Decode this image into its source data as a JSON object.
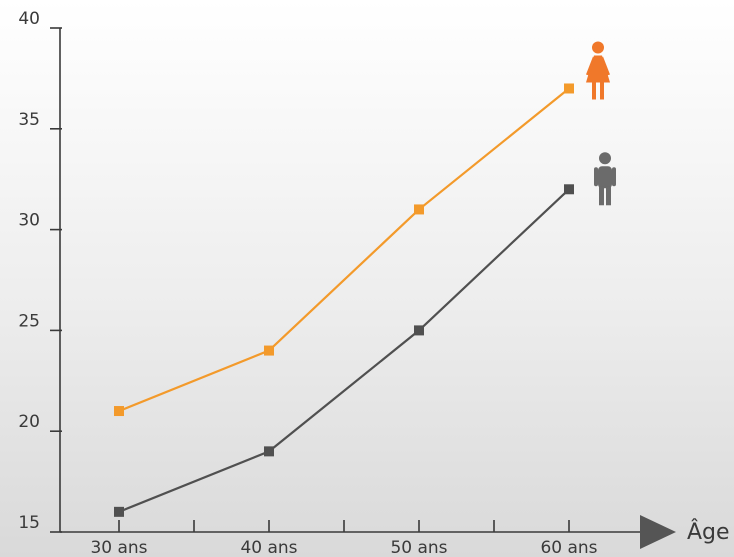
{
  "chart_data": {
    "type": "line",
    "categories": [
      "30 ans",
      "40 ans",
      "50 ans",
      "60 ans"
    ],
    "series": [
      {
        "color": "#f39a2b",
        "icon": "woman-icon",
        "icon_color": "#f0782a",
        "values": [
          21,
          24,
          31,
          37
        ]
      },
      {
        "color": "#505050",
        "icon": "man-icon",
        "icon_color": "#6b6b6b",
        "values": [
          16,
          19,
          25,
          32
        ]
      }
    ],
    "xlabel": "Âge",
    "ylabel": "",
    "title": "",
    "ylim": [
      15,
      40
    ],
    "yticks": [
      15,
      20,
      25,
      30,
      35,
      40
    ],
    "grid": false,
    "legend": "none"
  }
}
